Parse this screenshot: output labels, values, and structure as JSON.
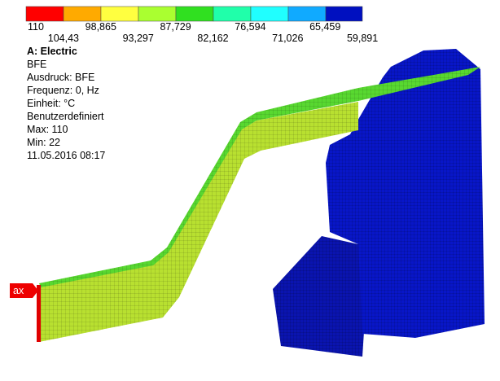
{
  "legend": {
    "labels": [
      "110",
      "104,43",
      "98,865",
      "93,297",
      "87,729",
      "82,162",
      "76,594",
      "71,026",
      "65,459",
      "59,891"
    ]
  },
  "info": {
    "title": "A: Electric",
    "lines": [
      "BFE",
      "Ausdruck: BFE",
      "Frequenz: 0, Hz",
      "Einheit: °C",
      "Benutzerdefiniert",
      "Max: 110",
      "Min: 22",
      "11.05.2016 08:17"
    ]
  },
  "probe": "ax"
}
